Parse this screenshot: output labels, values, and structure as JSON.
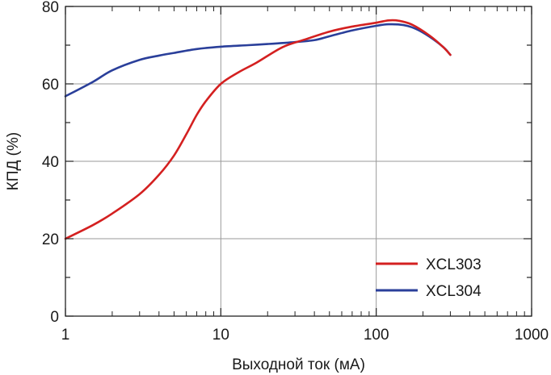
{
  "chart_data": {
    "type": "line",
    "xscale": "log",
    "xlim": [
      1,
      1000
    ],
    "ylim": [
      0,
      80
    ],
    "xticks": [
      1,
      10,
      100,
      1000
    ],
    "xtick_labels": [
      "1",
      "10",
      "100",
      "1000"
    ],
    "yticks": [
      0,
      20,
      40,
      60,
      80
    ],
    "ytick_labels": [
      "0",
      "20",
      "40",
      "60",
      "80"
    ],
    "xlabel": "Выходной ток (мА)",
    "ylabel": "КПД (%)",
    "grid": true,
    "legend_position": "bottom-right",
    "series": [
      {
        "name": "XCL303",
        "color": "#d42020",
        "points": [
          [
            1,
            20
          ],
          [
            1.5,
            23.5
          ],
          [
            2,
            26.5
          ],
          [
            3,
            31.5
          ],
          [
            4,
            36.5
          ],
          [
            5,
            41.5
          ],
          [
            6,
            47
          ],
          [
            7,
            52
          ],
          [
            8,
            55.5
          ],
          [
            10,
            60
          ],
          [
            13,
            63
          ],
          [
            17,
            65.5
          ],
          [
            25,
            69.5
          ],
          [
            35,
            71.5
          ],
          [
            50,
            73.5
          ],
          [
            70,
            74.8
          ],
          [
            100,
            75.8
          ],
          [
            120,
            76.4
          ],
          [
            140,
            76.3
          ],
          [
            170,
            75.3
          ],
          [
            220,
            72.5
          ],
          [
            270,
            69.5
          ],
          [
            300,
            67.5
          ]
        ]
      },
      {
        "name": "XCL304",
        "color": "#2a3f9a",
        "points": [
          [
            1,
            56.8
          ],
          [
            1.5,
            60.5
          ],
          [
            2,
            63.5
          ],
          [
            3,
            66.2
          ],
          [
            4,
            67.3
          ],
          [
            5,
            68
          ],
          [
            7,
            69
          ],
          [
            10,
            69.6
          ],
          [
            15,
            70
          ],
          [
            20,
            70.3
          ],
          [
            30,
            70.8
          ],
          [
            40,
            71.3
          ],
          [
            50,
            72.3
          ],
          [
            70,
            73.8
          ],
          [
            100,
            75
          ],
          [
            120,
            75.4
          ],
          [
            150,
            75.2
          ],
          [
            180,
            74.2
          ],
          [
            220,
            72.2
          ],
          [
            270,
            69.5
          ],
          [
            300,
            67.5
          ]
        ]
      }
    ]
  }
}
